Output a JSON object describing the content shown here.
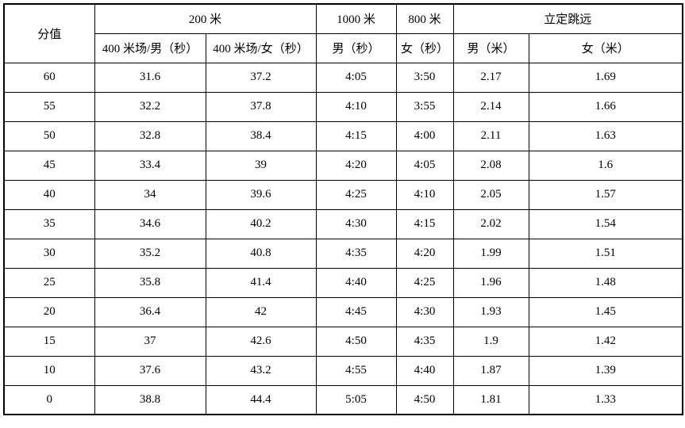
{
  "table": {
    "headers": {
      "score": "分值",
      "event_200m": "200 米",
      "col_200m_male": "400 米场/男（秒）",
      "col_200m_female": "400 米场/女（秒）",
      "event_1000m": "1000 米",
      "col_1000m_male": "男（秒）",
      "event_800m": "800 米",
      "col_800m_female": "女（秒）",
      "event_long_jump": "立定跳远",
      "col_long_jump_male": "男（米）",
      "col_long_jump_female": "女（米）"
    },
    "rows": [
      [
        "60",
        "31.6",
        "37.2",
        "4:05",
        "3:50",
        "2.17",
        "1.69"
      ],
      [
        "55",
        "32.2",
        "37.8",
        "4:10",
        "3:55",
        "2.14",
        "1.66"
      ],
      [
        "50",
        "32.8",
        "38.4",
        "4:15",
        "4:00",
        "2.11",
        "1.63"
      ],
      [
        "45",
        "33.4",
        "39",
        "4:20",
        "4:05",
        "2.08",
        "1.6"
      ],
      [
        "40",
        "34",
        "39.6",
        "4:25",
        "4:10",
        "2.05",
        "1.57"
      ],
      [
        "35",
        "34.6",
        "40.2",
        "4:30",
        "4:15",
        "2.02",
        "1.54"
      ],
      [
        "30",
        "35.2",
        "40.8",
        "4:35",
        "4:20",
        "1.99",
        "1.51"
      ],
      [
        "25",
        "35.8",
        "41.4",
        "4:40",
        "4:25",
        "1.96",
        "1.48"
      ],
      [
        "20",
        "36.4",
        "42",
        "4:45",
        "4:30",
        "1.93",
        "1.45"
      ],
      [
        "15",
        "37",
        "42.6",
        "4:50",
        "4:35",
        "1.9",
        "1.42"
      ],
      [
        "10",
        "37.6",
        "43.2",
        "4:55",
        "4:40",
        "1.87",
        "1.39"
      ],
      [
        "0",
        "38.8",
        "44.4",
        "5:05",
        "4:50",
        "1.81",
        "1.33"
      ]
    ],
    "colors": {
      "border": "#000000",
      "background": "#ffffff",
      "text": "#000000"
    }
  }
}
